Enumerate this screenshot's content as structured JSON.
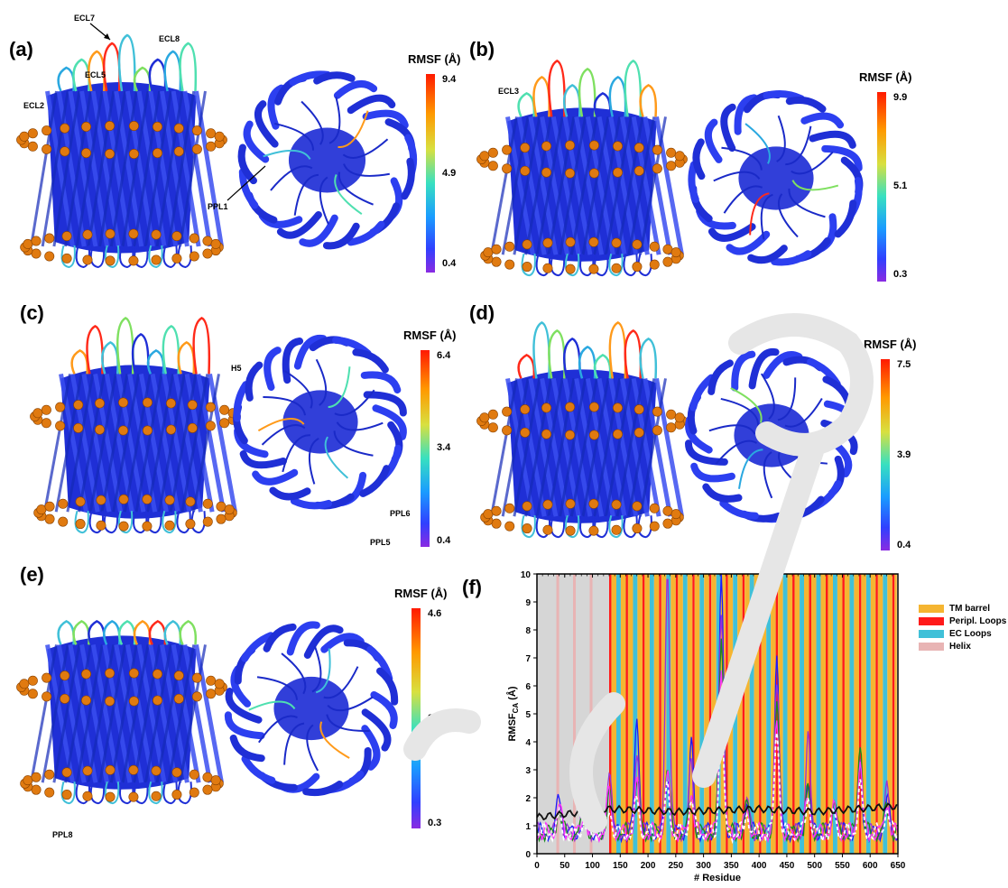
{
  "panels": {
    "a": {
      "label": "(a)",
      "cb_title": "RMSF (Å)",
      "cb_max": "9.4",
      "cb_mid": "4.9",
      "cb_min": "0.4",
      "annotations": [
        "ECL7",
        "ECL8",
        "ECL5",
        "ECL2",
        "PPL1"
      ]
    },
    "b": {
      "label": "(b)",
      "cb_title": "RMSF (Å)",
      "cb_max": "9.9",
      "cb_mid": "5.1",
      "cb_min": "0.3",
      "annotations": [
        "ECL3"
      ]
    },
    "c": {
      "label": "(c)",
      "cb_title": "RMSF (Å)",
      "cb_max": "6.4",
      "cb_mid": "3.4",
      "cb_min": "0.4",
      "annotations": [
        "H5",
        "PPL6",
        "PPL5"
      ]
    },
    "d": {
      "label": "(d)",
      "cb_title": "RMSF (Å)",
      "cb_max": "7.5",
      "cb_mid": "3.9",
      "cb_min": "0.4"
    },
    "e": {
      "label": "(e)",
      "cb_title": "RMSF (Å)",
      "cb_max": "4.6",
      "cb_mid": "2.4",
      "cb_min": "0.3",
      "annotations": [
        "PPL8"
      ]
    },
    "f": {
      "label": "(f)"
    }
  },
  "colors": {
    "protein": "#1f2fd6",
    "membrane": "#e07a10",
    "tm_barrel": "#f5b531",
    "peripl_loops": "#ff1a1a",
    "ec_loops": "#40c0d8",
    "helix": "#e8b4b4",
    "gray_region": "#d6d6d6"
  },
  "legend": [
    {
      "label": "TM barrel",
      "color": "#f5b531"
    },
    {
      "label": "Peripl. Loops",
      "color": "#ff1a1a"
    },
    {
      "label": "EC  Loops",
      "color": "#40c0d8"
    },
    {
      "label": "Helix",
      "color": "#e8b4b4"
    }
  ],
  "chart_data": {
    "type": "line",
    "xlabel": "# Residue",
    "ylabel": "RMSF",
    "ylabel_sub": "CA",
    "ylabel_unit": " (Å)",
    "xlim": [
      0,
      650
    ],
    "ylim": [
      0,
      10
    ],
    "xticks": [
      0,
      50,
      100,
      150,
      200,
      250,
      300,
      350,
      400,
      450,
      500,
      550,
      600,
      650
    ],
    "yticks": [
      0,
      1,
      2,
      3,
      4,
      5,
      6,
      7,
      8,
      9,
      10
    ],
    "series": [
      {
        "color": "#1a1aff",
        "peaks": [
          [
            40,
            1.9
          ],
          [
            85,
            1.2
          ],
          [
            130,
            2.2
          ],
          [
            180,
            4.7
          ],
          [
            235,
            2.5
          ],
          [
            278,
            3.6
          ],
          [
            332,
            9.6
          ],
          [
            378,
            1.6
          ],
          [
            432,
            6.9
          ],
          [
            488,
            2.4
          ],
          [
            535,
            1.5
          ],
          [
            582,
            2.6
          ],
          [
            630,
            1.8
          ]
        ]
      },
      {
        "color": "#9b30d6",
        "peaks": [
          [
            40,
            1.6
          ],
          [
            85,
            2.9
          ],
          [
            130,
            2.8
          ],
          [
            180,
            3.5
          ],
          [
            235,
            9.9
          ],
          [
            278,
            3.0
          ],
          [
            332,
            8.2
          ],
          [
            378,
            1.7
          ],
          [
            432,
            6.0
          ],
          [
            488,
            4.0
          ],
          [
            535,
            1.8
          ],
          [
            582,
            3.2
          ],
          [
            630,
            2.0
          ]
        ]
      },
      {
        "color": "#1a8a1a",
        "peaks": [
          [
            40,
            1.4
          ],
          [
            85,
            1.0
          ],
          [
            130,
            1.8
          ],
          [
            180,
            2.4
          ],
          [
            235,
            2.9
          ],
          [
            278,
            2.0
          ],
          [
            332,
            7.5
          ],
          [
            378,
            1.5
          ],
          [
            432,
            4.9
          ],
          [
            488,
            2.0
          ],
          [
            535,
            1.6
          ],
          [
            582,
            3.8
          ],
          [
            630,
            1.5
          ]
        ]
      },
      {
        "color": "#ff30ff",
        "peaks": [
          [
            40,
            1.5
          ],
          [
            85,
            1.3
          ],
          [
            130,
            2.0
          ],
          [
            180,
            2.2
          ],
          [
            235,
            2.5
          ],
          [
            278,
            1.9
          ],
          [
            332,
            6.4
          ],
          [
            378,
            1.4
          ],
          [
            432,
            4.4
          ],
          [
            488,
            1.9
          ],
          [
            535,
            1.4
          ],
          [
            582,
            3.1
          ],
          [
            630,
            1.6
          ]
        ]
      },
      {
        "color": "#ffffff",
        "dashed": true,
        "peaks": [
          [
            40,
            1.1
          ],
          [
            85,
            0.9
          ],
          [
            130,
            1.4
          ],
          [
            180,
            1.8
          ],
          [
            235,
            2.2
          ],
          [
            278,
            1.7
          ],
          [
            332,
            4.6
          ],
          [
            378,
            1.2
          ],
          [
            432,
            4.3
          ],
          [
            488,
            1.8
          ],
          [
            535,
            1.3
          ],
          [
            582,
            2.2
          ],
          [
            630,
            1.4
          ]
        ]
      },
      {
        "color": "#111111",
        "baseline": true,
        "peaks": [
          [
            0,
            1.3
          ],
          [
            130,
            1.6
          ],
          [
            250,
            1.5
          ],
          [
            400,
            1.6
          ],
          [
            500,
            1.5
          ],
          [
            650,
            1.7
          ]
        ]
      }
    ]
  }
}
